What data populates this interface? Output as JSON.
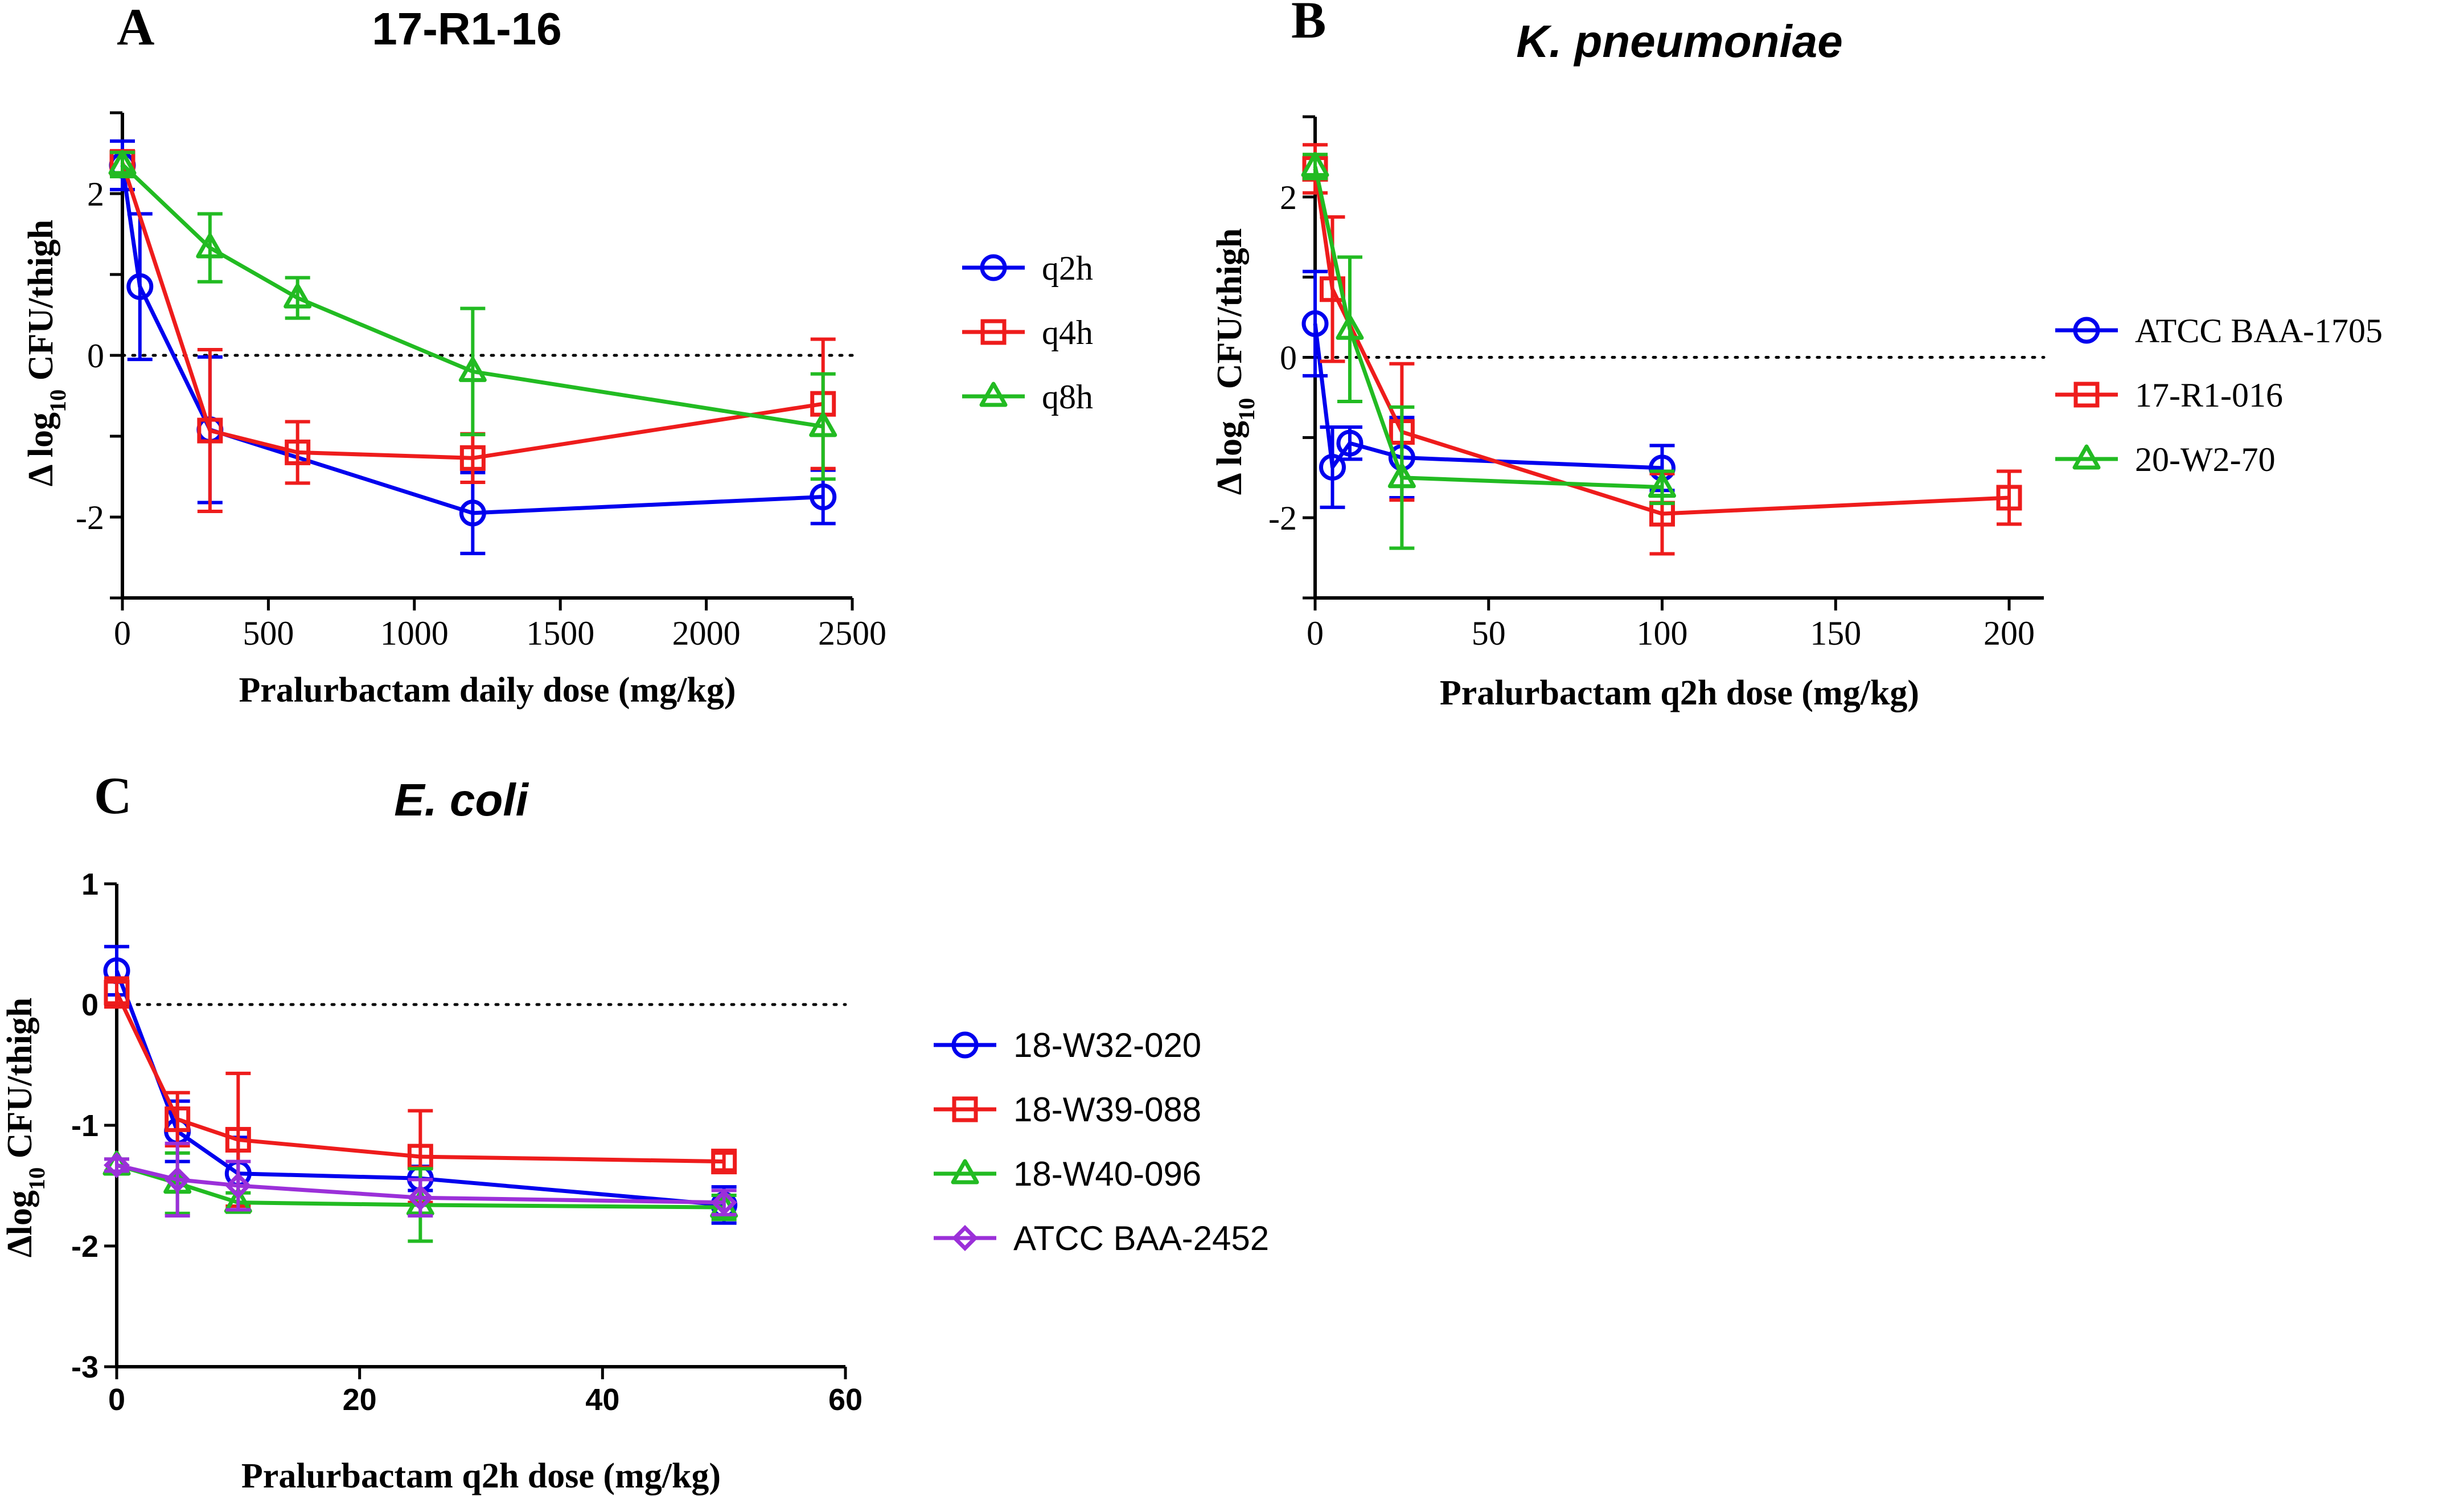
{
  "figure": {
    "panels": [
      {
        "letter": "A",
        "title": "17-R1-16",
        "title_style": "bold",
        "axis_font": "serif"
      },
      {
        "letter": "B",
        "title": "K. pneumoniae",
        "title_style": "bold-italic",
        "axis_font": "serif"
      },
      {
        "letter": "C",
        "title": "E. coli",
        "title_style": "bold-italic",
        "axis_font": "sans"
      }
    ]
  },
  "chart_data": [
    {
      "type": "line",
      "title": "17-R1-16",
      "xlabel": "Pralurbactam daily dose (mg/kg)",
      "ylabel_prefix": "Δ log",
      "ylabel_sub": "10",
      "ylabel_suffix": " CFU/thigh",
      "xlim": [
        0,
        2500
      ],
      "ylim": [
        -3,
        3
      ],
      "xticks": [
        "0",
        "500",
        "1000",
        "1500",
        "2000",
        "2500"
      ],
      "yticks": [
        "2",
        "0",
        "-2"
      ],
      "reference_line_y": 0,
      "series": [
        {
          "name": "q2h",
          "color": "#0000ee",
          "marker": "circle",
          "x": [
            0,
            60,
            300,
            1200,
            2400
          ],
          "y": [
            2.35,
            0.85,
            -0.92,
            -1.95,
            -1.75
          ],
          "err": [
            0.3,
            0.9,
            0.9,
            0.5,
            0.33
          ]
        },
        {
          "name": "q4h",
          "color": "#ee1c1c",
          "marker": "square",
          "x": [
            0,
            300,
            600,
            1200,
            2400
          ],
          "y": [
            2.38,
            -0.93,
            -1.2,
            -1.27,
            -0.6
          ],
          "err": [
            0.15,
            1.0,
            0.38,
            0.3,
            0.8
          ]
        },
        {
          "name": "q8h",
          "color": "#22bb22",
          "marker": "triangle",
          "x": [
            0,
            300,
            600,
            1200,
            2400
          ],
          "y": [
            2.36,
            1.33,
            0.71,
            -0.2,
            -0.88
          ],
          "err": [
            0.15,
            0.42,
            0.25,
            0.78,
            0.65
          ]
        }
      ]
    },
    {
      "type": "line",
      "title": "K. pneumoniae",
      "xlabel": "Pralurbactam q2h dose (mg/kg)",
      "ylabel_prefix": "Δ log",
      "ylabel_sub": "10",
      "ylabel_suffix": " CFU/thigh",
      "xlim": [
        0,
        210
      ],
      "ylim": [
        -3,
        3
      ],
      "xticks": [
        "0",
        "50",
        "100",
        "150",
        "200"
      ],
      "yticks": [
        "2",
        "0",
        "-2"
      ],
      "reference_line_y": 0,
      "series": [
        {
          "name": "ATCC BAA-1705",
          "color": "#0000ee",
          "marker": "circle",
          "x": [
            0,
            5,
            10,
            25,
            100
          ],
          "y": [
            0.42,
            -1.37,
            -1.07,
            -1.25,
            -1.38
          ],
          "err": [
            0.65,
            0.5,
            0.2,
            0.5,
            0.28
          ]
        },
        {
          "name": "17-R1-016",
          "color": "#ee1c1c",
          "marker": "square",
          "x": [
            0,
            5,
            25,
            100,
            200
          ],
          "y": [
            2.35,
            0.85,
            -0.93,
            -1.95,
            -1.75
          ],
          "err": [
            0.3,
            0.9,
            0.85,
            0.5,
            0.33
          ]
        },
        {
          "name": "20-W2-70",
          "color": "#22bb22",
          "marker": "triangle",
          "x": [
            0,
            10,
            25,
            100
          ],
          "y": [
            2.38,
            0.35,
            -1.5,
            -1.62
          ],
          "err": [
            0.15,
            0.9,
            0.88,
            0.2
          ]
        }
      ]
    },
    {
      "type": "line",
      "title": "E. coli",
      "xlabel": "Pralurbactam q2h dose (mg/kg)",
      "ylabel_prefix": "Δlog",
      "ylabel_sub": "10",
      "ylabel_suffix": " CFU/thigh",
      "xlim": [
        0,
        60
      ],
      "ylim": [
        -3,
        1
      ],
      "xticks": [
        "0",
        "20",
        "40",
        "60"
      ],
      "yticks": [
        "1",
        "0",
        "-1",
        "-2",
        "-3"
      ],
      "reference_line_y": 0,
      "series": [
        {
          "name": "18-W32-020",
          "color": "#0000ee",
          "marker": "circle",
          "x": [
            0,
            5,
            10,
            25,
            50
          ],
          "y": [
            0.28,
            -1.05,
            -1.4,
            -1.44,
            -1.66
          ],
          "err": [
            0.2,
            0.25,
            0.3,
            0.1,
            0.15
          ]
        },
        {
          "name": "18-W39-088",
          "color": "#ee1c1c",
          "marker": "square",
          "x": [
            0,
            5,
            10,
            25,
            50
          ],
          "y": [
            0.1,
            -0.95,
            -1.12,
            -1.26,
            -1.3
          ],
          "err": [
            0.12,
            0.22,
            0.55,
            0.38,
            0.07
          ]
        },
        {
          "name": "18-W40-096",
          "color": "#22bb22",
          "marker": "triangle",
          "x": [
            0,
            5,
            10,
            25,
            50
          ],
          "y": [
            -1.33,
            -1.48,
            -1.64,
            -1.66,
            -1.68
          ],
          "err": [
            0.05,
            0.25,
            0.08,
            0.3,
            0.1
          ]
        },
        {
          "name": "ATCC BAA-2452",
          "color": "#9b30d9",
          "marker": "diamond",
          "x": [
            0,
            5,
            10,
            25,
            50
          ],
          "y": [
            -1.33,
            -1.45,
            -1.5,
            -1.6,
            -1.64
          ],
          "err": [
            0.05,
            0.3,
            0.2,
            0.15,
            0.1
          ]
        }
      ]
    }
  ]
}
